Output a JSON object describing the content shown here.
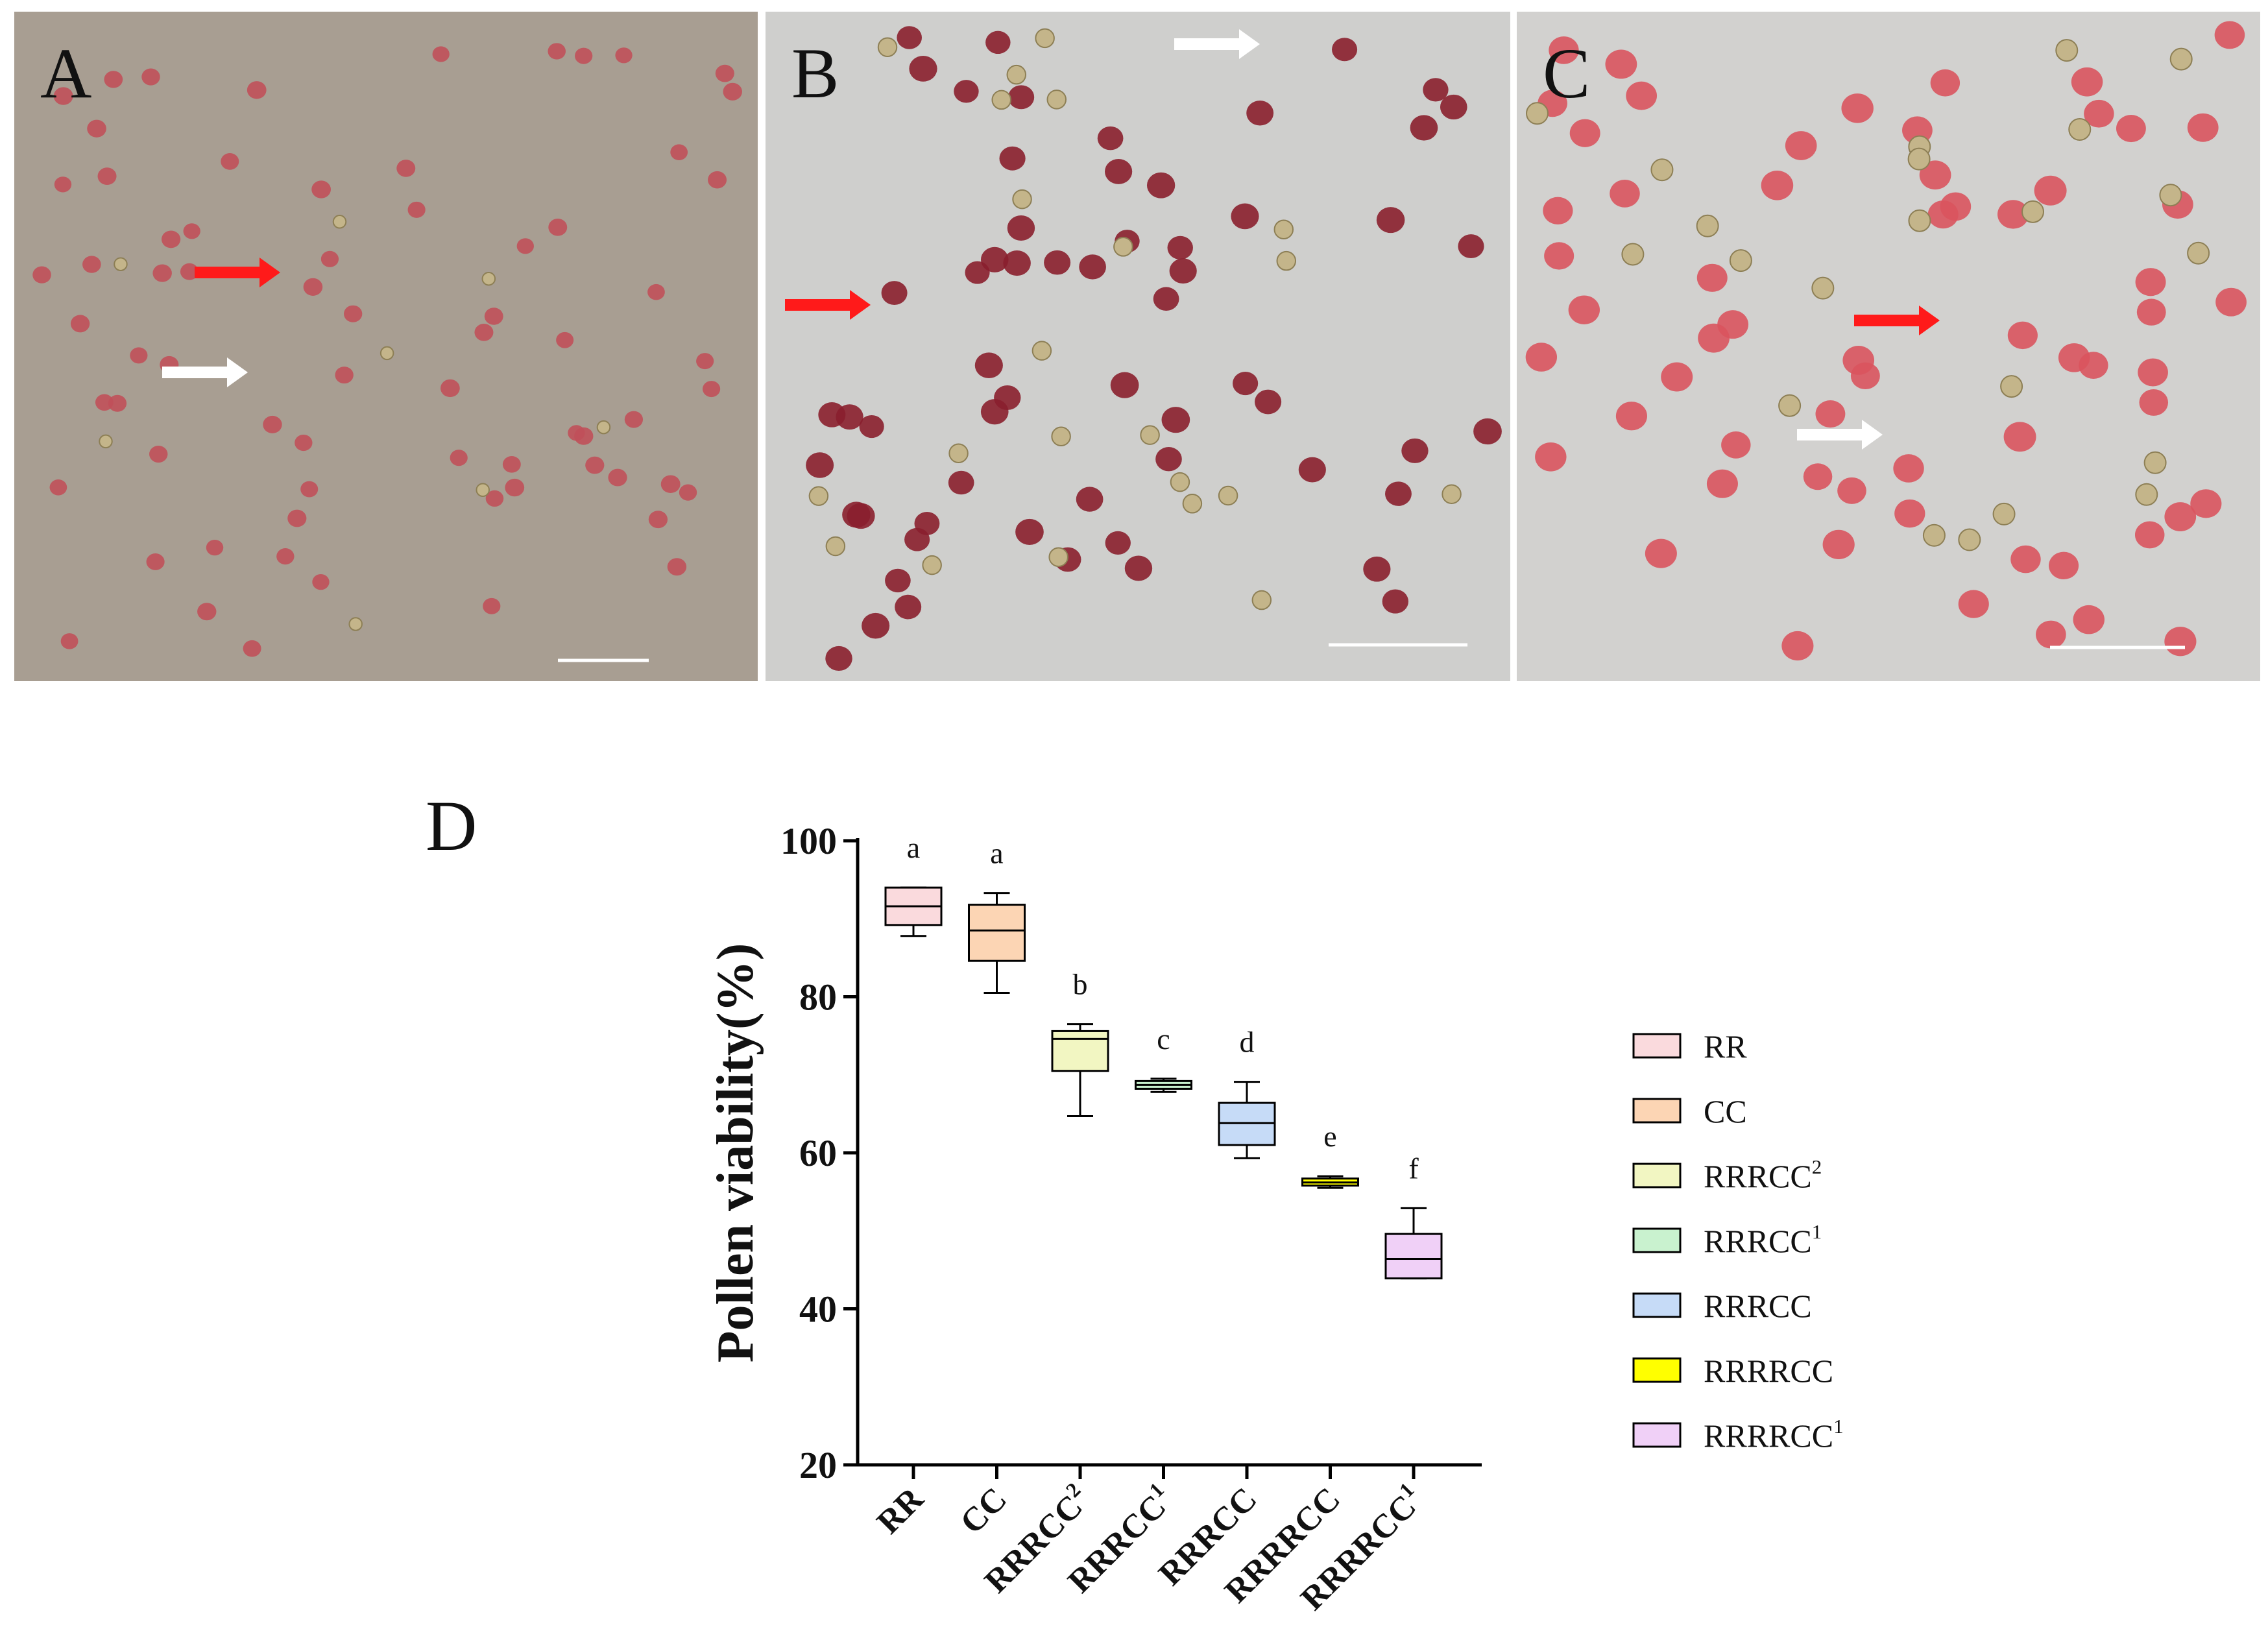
{
  "panels": [
    {
      "id": "A",
      "label": "A",
      "background": "#a89e92",
      "pollen_color": "#c0505a"
    },
    {
      "id": "B",
      "label": "B",
      "background": "#cfcfcd",
      "pollen_color": "#8a1f2e"
    },
    {
      "id": "C",
      "label": "C",
      "background": "#d2d1cf",
      "pollen_color": "#d9545e"
    }
  ],
  "arrows": {
    "viable": "#ff1a1a",
    "nonviable": "#ffffff"
  },
  "chart_panel_label": "D",
  "chart_data": {
    "type": "box",
    "ylabel": "Pollen viability(%)",
    "xlabel": "",
    "ylim": [
      20,
      100
    ],
    "yticks": [
      20,
      40,
      60,
      80,
      100
    ],
    "grid": false,
    "legend_position": "right",
    "categories": [
      {
        "main": "RR",
        "sup": ""
      },
      {
        "main": "CC",
        "sup": ""
      },
      {
        "main": "RRRCC",
        "sup": "2"
      },
      {
        "main": "RRRCC",
        "sup": "1"
      },
      {
        "main": "RRRCC",
        "sup": ""
      },
      {
        "main": "RRRRCC",
        "sup": ""
      },
      {
        "main": "RRRRCC",
        "sup": "1"
      }
    ],
    "series": [
      {
        "min": 87.8,
        "q1": 89.2,
        "median": 91.6,
        "q3": 94.0,
        "max": 94.0,
        "letter": "a",
        "color": "#fadadd"
      },
      {
        "min": 80.5,
        "q1": 84.6,
        "median": 88.5,
        "q3": 91.8,
        "max": 93.3,
        "letter": "a",
        "color": "#fcd5b4"
      },
      {
        "min": 64.7,
        "q1": 70.5,
        "median": 74.6,
        "q3": 75.6,
        "max": 76.5,
        "letter": "b",
        "color": "#f2f6c2"
      },
      {
        "min": 67.8,
        "q1": 68.2,
        "median": 68.7,
        "q3": 69.2,
        "max": 69.5,
        "letter": "c",
        "color": "#c9f2cf"
      },
      {
        "min": 59.3,
        "q1": 61.0,
        "median": 63.8,
        "q3": 66.4,
        "max": 69.1,
        "letter": "d",
        "color": "#c6dbf7"
      },
      {
        "min": 55.5,
        "q1": 55.8,
        "median": 56.2,
        "q3": 56.7,
        "max": 57.0,
        "letter": "e",
        "color": "#ffff00"
      },
      {
        "min": 43.9,
        "q1": 43.9,
        "median": 46.4,
        "q3": 49.6,
        "max": 52.9,
        "letter": "f",
        "color": "#f0d0f7"
      }
    ],
    "legend": [
      {
        "main": "RR",
        "sup": ""
      },
      {
        "main": "CC",
        "sup": ""
      },
      {
        "main": "RRRCC",
        "sup": "2"
      },
      {
        "main": "RRRCC",
        "sup": "1"
      },
      {
        "main": "RRRCC",
        "sup": ""
      },
      {
        "main": "RRRRCC",
        "sup": ""
      },
      {
        "main": "RRRRCC",
        "sup": "1"
      }
    ]
  }
}
